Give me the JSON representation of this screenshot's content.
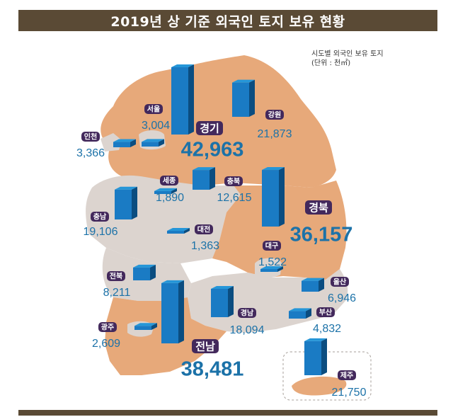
{
  "header": {
    "title": "2019년 상 기준 외국인 토지 보유 현황"
  },
  "note": {
    "line1": "시도별 외국인 보유 토지",
    "line2": "(단위 : 천㎡)"
  },
  "colors": {
    "bar_front": "#1a7bc4",
    "bar_side": "#0b4d80",
    "bar_top": "#2596d8",
    "label_bg": "#43295c",
    "value_text": "#1c72a8",
    "title_bg": "#5a4a35",
    "region_orange": "#e7a97a",
    "region_gray": "#dcd4cf"
  },
  "chart_data": {
    "type": "bar",
    "title": "2019년 상 기준 외국인 토지 보유 현황",
    "subtitle": "시도별 외국인 보유 토지",
    "unit": "(단위 : 천㎡)",
    "categories": [
      "경기",
      "전남",
      "경북",
      "강원",
      "제주",
      "충남",
      "경남",
      "충북",
      "전북",
      "울산",
      "부산",
      "인천",
      "서울",
      "광주",
      "세종",
      "대구",
      "대전"
    ],
    "values": [
      42963,
      38481,
      36157,
      21873,
      21750,
      19106,
      18094,
      12615,
      8211,
      6946,
      4832,
      3366,
      3004,
      2609,
      1890,
      1522,
      1363
    ],
    "value_labels": [
      "42,963",
      "38,481",
      "36,157",
      "21,873",
      "21,750",
      "19,106",
      "18,094",
      "12,615",
      "8,211",
      "6,946",
      "4,832",
      "3,366",
      "3,004",
      "2,609",
      "1,890",
      "1,522",
      "1,363"
    ]
  }
}
